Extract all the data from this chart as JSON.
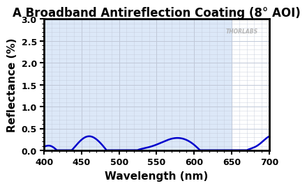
{
  "title": "A Broadband Antireflection Coating (8° AOI)",
  "xlabel": "Wavelength (nm)",
  "ylabel": "Reflectance (%)",
  "xlim": [
    400,
    700
  ],
  "ylim": [
    0,
    3.0
  ],
  "yticks": [
    0.0,
    0.5,
    1.0,
    1.5,
    2.0,
    2.5,
    3.0
  ],
  "xticks": [
    400,
    450,
    500,
    550,
    600,
    650,
    700
  ],
  "line_color": "#0000cc",
  "bg_color": "#dce8f8",
  "bg_color_right": "#ffffff",
  "grid_color": "#c0c8d8",
  "watermark": "THORLABS",
  "watermark_color": "#aaaaaa",
  "title_fontsize": 12,
  "label_fontsize": 11,
  "tick_fontsize": 9
}
